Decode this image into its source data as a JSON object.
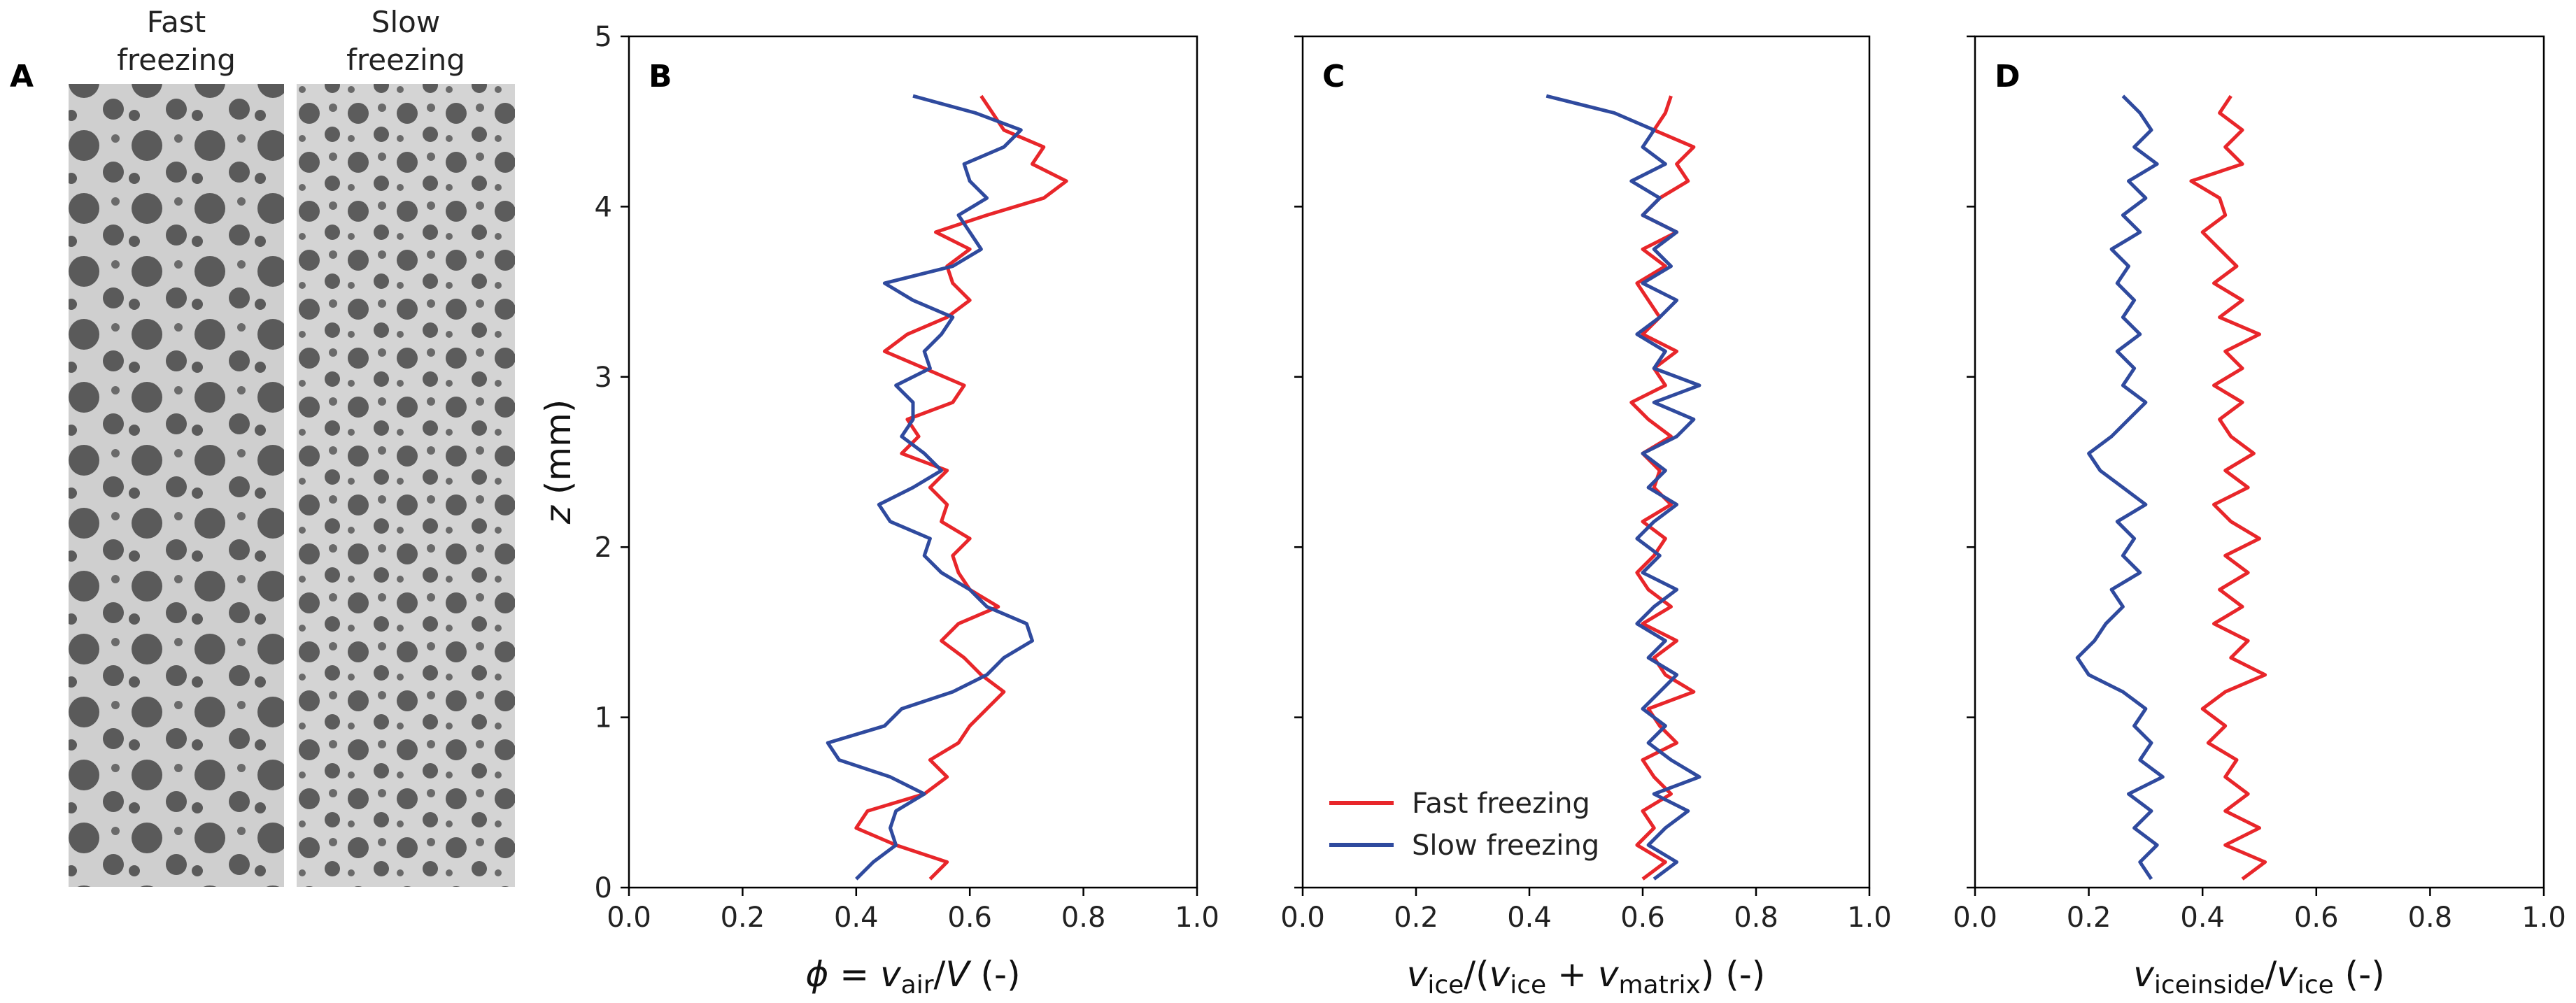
{
  "panel_a": {
    "letter": "A",
    "captions": [
      [
        "Fast",
        "freezing"
      ],
      [
        "Slow",
        "freezing"
      ]
    ]
  },
  "chart_data": [
    {
      "panel": "B",
      "type": "line",
      "xlabel": "ϕ = v_air/V (-)",
      "ylabel": "z (mm)",
      "xlim": [
        0.0,
        1.0
      ],
      "ylim": [
        0,
        5
      ],
      "xticks": [
        "0.0",
        "0.2",
        "0.4",
        "0.6",
        "0.8",
        "1.0"
      ],
      "yticks": [
        "0",
        "1",
        "2",
        "3",
        "4",
        "5"
      ],
      "series": [
        {
          "name": "Fast freezing",
          "color": "#e8262a",
          "y": [
            0.05,
            0.15,
            0.25,
            0.35,
            0.45,
            0.55,
            0.65,
            0.75,
            0.85,
            0.95,
            1.05,
            1.15,
            1.25,
            1.35,
            1.45,
            1.55,
            1.65,
            1.75,
            1.85,
            1.95,
            2.05,
            2.15,
            2.25,
            2.35,
            2.45,
            2.55,
            2.65,
            2.75,
            2.85,
            2.95,
            3.05,
            3.15,
            3.25,
            3.35,
            3.45,
            3.55,
            3.65,
            3.75,
            3.85,
            3.95,
            4.05,
            4.15,
            4.25,
            4.35,
            4.45,
            4.55,
            4.65
          ],
          "x": [
            0.53,
            0.56,
            0.47,
            0.4,
            0.42,
            0.52,
            0.56,
            0.53,
            0.58,
            0.6,
            0.63,
            0.66,
            0.62,
            0.59,
            0.55,
            0.58,
            0.65,
            0.6,
            0.58,
            0.57,
            0.6,
            0.55,
            0.56,
            0.53,
            0.56,
            0.48,
            0.51,
            0.49,
            0.57,
            0.59,
            0.52,
            0.45,
            0.49,
            0.56,
            0.6,
            0.57,
            0.56,
            0.6,
            0.54,
            0.63,
            0.73,
            0.77,
            0.71,
            0.73,
            0.66,
            0.64,
            0.62
          ]
        },
        {
          "name": "Slow freezing",
          "color": "#2f4a9e",
          "y": [
            0.05,
            0.15,
            0.25,
            0.35,
            0.45,
            0.55,
            0.65,
            0.75,
            0.85,
            0.95,
            1.05,
            1.15,
            1.25,
            1.35,
            1.45,
            1.55,
            1.65,
            1.75,
            1.85,
            1.95,
            2.05,
            2.15,
            2.25,
            2.35,
            2.45,
            2.55,
            2.65,
            2.75,
            2.85,
            2.95,
            3.05,
            3.15,
            3.25,
            3.35,
            3.45,
            3.55,
            3.65,
            3.75,
            3.85,
            3.95,
            4.05,
            4.15,
            4.25,
            4.35,
            4.45,
            4.55,
            4.65
          ],
          "x": [
            0.4,
            0.43,
            0.47,
            0.46,
            0.47,
            0.52,
            0.46,
            0.37,
            0.35,
            0.45,
            0.48,
            0.57,
            0.63,
            0.66,
            0.71,
            0.7,
            0.63,
            0.6,
            0.55,
            0.52,
            0.53,
            0.46,
            0.44,
            0.5,
            0.55,
            0.52,
            0.48,
            0.5,
            0.5,
            0.47,
            0.53,
            0.52,
            0.55,
            0.57,
            0.5,
            0.45,
            0.57,
            0.62,
            0.6,
            0.58,
            0.63,
            0.6,
            0.59,
            0.66,
            0.69,
            0.61,
            0.5
          ]
        }
      ]
    },
    {
      "panel": "C",
      "type": "line",
      "xlabel": "v_ice/(v_ice + v_matrix) (-)",
      "xlim": [
        0.0,
        1.0
      ],
      "ylim": [
        0,
        5
      ],
      "xticks": [
        "0.0",
        "0.2",
        "0.4",
        "0.6",
        "0.8",
        "1.0"
      ],
      "legend": {
        "location": "lower-left",
        "entries": [
          "Fast freezing",
          "Slow freezing"
        ]
      },
      "series": [
        {
          "name": "Fast freezing",
          "color": "#e8262a",
          "y": [
            0.05,
            0.15,
            0.25,
            0.35,
            0.45,
            0.55,
            0.65,
            0.75,
            0.85,
            0.95,
            1.05,
            1.15,
            1.25,
            1.35,
            1.45,
            1.55,
            1.65,
            1.75,
            1.85,
            1.95,
            2.05,
            2.15,
            2.25,
            2.35,
            2.45,
            2.55,
            2.65,
            2.75,
            2.85,
            2.95,
            3.05,
            3.15,
            3.25,
            3.35,
            3.45,
            3.55,
            3.65,
            3.75,
            3.85,
            3.95,
            4.05,
            4.15,
            4.25,
            4.35,
            4.45,
            4.55,
            4.65
          ],
          "x": [
            0.6,
            0.64,
            0.59,
            0.62,
            0.6,
            0.65,
            0.62,
            0.6,
            0.66,
            0.63,
            0.61,
            0.69,
            0.64,
            0.62,
            0.66,
            0.6,
            0.65,
            0.61,
            0.59,
            0.62,
            0.64,
            0.6,
            0.65,
            0.62,
            0.63,
            0.6,
            0.65,
            0.61,
            0.58,
            0.64,
            0.62,
            0.66,
            0.6,
            0.63,
            0.61,
            0.59,
            0.64,
            0.6,
            0.66,
            0.6,
            0.63,
            0.68,
            0.66,
            0.69,
            0.62,
            0.64,
            0.65
          ]
        },
        {
          "name": "Slow freezing",
          "color": "#2f4a9e",
          "y": [
            0.05,
            0.15,
            0.25,
            0.35,
            0.45,
            0.55,
            0.65,
            0.75,
            0.85,
            0.95,
            1.05,
            1.15,
            1.25,
            1.35,
            1.45,
            1.55,
            1.65,
            1.75,
            1.85,
            1.95,
            2.05,
            2.15,
            2.25,
            2.35,
            2.45,
            2.55,
            2.65,
            2.75,
            2.85,
            2.95,
            3.05,
            3.15,
            3.25,
            3.35,
            3.45,
            3.55,
            3.65,
            3.75,
            3.85,
            3.95,
            4.05,
            4.15,
            4.25,
            4.35,
            4.45,
            4.55,
            4.65
          ],
          "x": [
            0.62,
            0.66,
            0.61,
            0.64,
            0.68,
            0.62,
            0.7,
            0.65,
            0.61,
            0.64,
            0.6,
            0.63,
            0.66,
            0.61,
            0.64,
            0.59,
            0.62,
            0.66,
            0.6,
            0.63,
            0.59,
            0.62,
            0.66,
            0.61,
            0.64,
            0.6,
            0.66,
            0.69,
            0.62,
            0.7,
            0.62,
            0.64,
            0.59,
            0.63,
            0.66,
            0.6,
            0.65,
            0.62,
            0.66,
            0.6,
            0.63,
            0.58,
            0.64,
            0.6,
            0.62,
            0.55,
            0.43
          ]
        }
      ]
    },
    {
      "panel": "D",
      "type": "line",
      "xlabel": "v_iceinside/v_ice (-)",
      "xlim": [
        0.0,
        1.0
      ],
      "ylim": [
        0,
        5
      ],
      "xticks": [
        "0.0",
        "0.2",
        "0.4",
        "0.6",
        "0.8",
        "1.0"
      ],
      "series": [
        {
          "name": "Fast freezing",
          "color": "#e8262a",
          "y": [
            0.05,
            0.15,
            0.25,
            0.35,
            0.45,
            0.55,
            0.65,
            0.75,
            0.85,
            0.95,
            1.05,
            1.15,
            1.25,
            1.35,
            1.45,
            1.55,
            1.65,
            1.75,
            1.85,
            1.95,
            2.05,
            2.15,
            2.25,
            2.35,
            2.45,
            2.55,
            2.65,
            2.75,
            2.85,
            2.95,
            3.05,
            3.15,
            3.25,
            3.35,
            3.45,
            3.55,
            3.65,
            3.75,
            3.85,
            3.95,
            4.05,
            4.15,
            4.25,
            4.35,
            4.45,
            4.55,
            4.65
          ],
          "x": [
            0.47,
            0.51,
            0.44,
            0.5,
            0.44,
            0.48,
            0.44,
            0.46,
            0.41,
            0.44,
            0.4,
            0.44,
            0.51,
            0.45,
            0.48,
            0.42,
            0.47,
            0.43,
            0.48,
            0.44,
            0.5,
            0.45,
            0.42,
            0.48,
            0.44,
            0.49,
            0.45,
            0.43,
            0.47,
            0.42,
            0.47,
            0.44,
            0.5,
            0.43,
            0.47,
            0.42,
            0.46,
            0.43,
            0.4,
            0.44,
            0.43,
            0.38,
            0.47,
            0.44,
            0.47,
            0.43,
            0.45
          ]
        },
        {
          "name": "Slow freezing",
          "color": "#2f4a9e",
          "y": [
            0.05,
            0.15,
            0.25,
            0.35,
            0.45,
            0.55,
            0.65,
            0.75,
            0.85,
            0.95,
            1.05,
            1.15,
            1.25,
            1.35,
            1.45,
            1.55,
            1.65,
            1.75,
            1.85,
            1.95,
            2.05,
            2.15,
            2.25,
            2.35,
            2.45,
            2.55,
            2.65,
            2.75,
            2.85,
            2.95,
            3.05,
            3.15,
            3.25,
            3.35,
            3.45,
            3.55,
            3.65,
            3.75,
            3.85,
            3.95,
            4.05,
            4.15,
            4.25,
            4.35,
            4.45,
            4.55,
            4.65
          ],
          "x": [
            0.31,
            0.29,
            0.32,
            0.28,
            0.31,
            0.27,
            0.33,
            0.29,
            0.31,
            0.28,
            0.3,
            0.26,
            0.2,
            0.18,
            0.21,
            0.23,
            0.26,
            0.24,
            0.29,
            0.26,
            0.28,
            0.25,
            0.3,
            0.26,
            0.22,
            0.2,
            0.24,
            0.27,
            0.3,
            0.26,
            0.28,
            0.25,
            0.29,
            0.26,
            0.28,
            0.25,
            0.27,
            0.24,
            0.29,
            0.26,
            0.3,
            0.27,
            0.32,
            0.28,
            0.31,
            0.29,
            0.26
          ]
        }
      ]
    }
  ]
}
